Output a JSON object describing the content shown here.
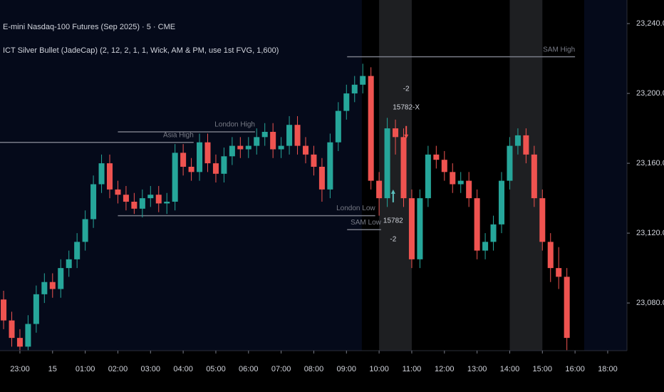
{
  "chart_data": {
    "type": "candlestick",
    "title": "E-mini Nasdaq-100 Futures (Sep 2025) · 5 · CME",
    "subtitle": "ICT Silver Bullet (JadeCap) (2, 12, 2, 1, 1, Wick, AM & PM, use 1st FVG, 1,600)",
    "up_color": "#26a69a",
    "down_color": "#ef5350",
    "x": [
      -0.5,
      -0.25,
      0,
      0.25,
      0.5,
      0.75,
      1,
      1.25,
      1.5,
      1.75,
      2,
      2.25,
      2.5,
      2.75,
      3,
      3.25,
      3.5,
      3.75,
      4,
      4.25,
      4.5,
      4.75,
      5,
      5.25,
      5.5,
      5.75,
      6,
      6.25,
      6.5,
      6.75,
      7,
      7.25,
      7.5,
      7.75,
      8,
      8.25,
      8.5,
      8.75,
      9,
      9.25,
      9.5,
      9.75,
      10,
      10.25,
      10.5,
      10.75,
      11,
      11.25,
      11.5,
      11.75,
      12,
      12.25,
      12.5,
      12.75,
      13,
      13.25,
      13.5,
      13.75,
      14,
      14.25,
      14.5,
      14.75,
      15,
      15.25,
      15.5,
      15.75,
      16,
      16.25,
      16.5,
      16.75
    ],
    "open": [
      23082,
      23070,
      23060,
      23055,
      23068,
      23085,
      23092,
      23088,
      23100,
      23105,
      23115,
      23128,
      23148,
      23160,
      23145,
      23142,
      23138,
      23134,
      23140,
      23142,
      23137,
      23138,
      23166,
      23158,
      23155,
      23172,
      23160,
      23154,
      23164,
      23170,
      23168,
      23170,
      23175,
      23178,
      23168,
      23170,
      23182,
      23170,
      23165,
      23158,
      23145,
      23172,
      23190,
      23200,
      23205,
      23210,
      23150,
      23140,
      23180,
      23175,
      23140,
      23105,
      23140,
      23165,
      23162,
      23155,
      23148,
      23150,
      23140,
      23110,
      23115,
      23125,
      23150,
      23170,
      23176,
      23165,
      23140,
      23115,
      23100,
      23095
    ],
    "high": [
      23087,
      23075,
      23065,
      23073,
      23090,
      23097,
      23097,
      23105,
      23110,
      23120,
      23133,
      23153,
      23165,
      23165,
      23150,
      23147,
      23143,
      23145,
      23147,
      23147,
      23143,
      23171,
      23171,
      23163,
      23177,
      23177,
      23165,
      23169,
      23175,
      23175,
      23175,
      23180,
      23183,
      23183,
      23175,
      23187,
      23187,
      23175,
      23170,
      23163,
      23177,
      23195,
      23205,
      23210,
      23217,
      23215,
      23155,
      23186,
      23185,
      23180,
      23145,
      23145,
      23170,
      23170,
      23167,
      23160,
      23155,
      23155,
      23145,
      23120,
      23130,
      23155,
      23175,
      23180,
      23180,
      23170,
      23145,
      23120,
      23112,
      23100
    ],
    "low": [
      23065,
      23055,
      23053,
      23053,
      23063,
      23080,
      23083,
      23083,
      23095,
      23100,
      23110,
      23123,
      23143,
      23140,
      23137,
      23133,
      23131,
      23129,
      23135,
      23132,
      23131,
      23133,
      23153,
      23150,
      23150,
      23155,
      23149,
      23149,
      23159,
      23163,
      23163,
      23165,
      23170,
      23163,
      23163,
      23165,
      23165,
      23160,
      23153,
      23138,
      23140,
      23167,
      23185,
      23195,
      23200,
      23145,
      23130,
      23135,
      23165,
      23135,
      23100,
      23100,
      23135,
      23157,
      23150,
      23143,
      23143,
      23135,
      23105,
      23105,
      23110,
      23120,
      23145,
      23165,
      23160,
      23135,
      23110,
      23092,
      23088,
      23053
    ],
    "close": [
      23070,
      23060,
      23055,
      23068,
      23085,
      23092,
      23088,
      23100,
      23105,
      23115,
      23128,
      23148,
      23160,
      23145,
      23142,
      23138,
      23134,
      23140,
      23142,
      23137,
      23138,
      23166,
      23158,
      23155,
      23172,
      23160,
      23154,
      23164,
      23170,
      23168,
      23170,
      23175,
      23178,
      23168,
      23170,
      23182,
      23170,
      23165,
      23158,
      23145,
      23172,
      23190,
      23200,
      23205,
      23210,
      23150,
      23140,
      23180,
      23175,
      23140,
      23105,
      23140,
      23165,
      23162,
      23155,
      23148,
      23150,
      23140,
      23110,
      23115,
      23125,
      23150,
      23170,
      23176,
      23165,
      23140,
      23115,
      23100,
      23095,
      23060
    ],
    "xlim": [
      -0.61,
      18.59
    ],
    "xticks": [
      {
        "value": 0,
        "label": "23:00"
      },
      {
        "value": 1,
        "label": "15"
      },
      {
        "value": 2,
        "label": "01:00"
      },
      {
        "value": 3,
        "label": "02:00"
      },
      {
        "value": 4,
        "label": "03:00"
      },
      {
        "value": 5,
        "label": "04:00"
      },
      {
        "value": 6,
        "label": "05:00"
      },
      {
        "value": 7,
        "label": "06:00"
      },
      {
        "value": 8,
        "label": "07:00"
      },
      {
        "value": 9,
        "label": "08:00"
      },
      {
        "value": 10,
        "label": "09:00"
      },
      {
        "value": 11,
        "label": "10:00"
      },
      {
        "value": 12,
        "label": "11:00"
      },
      {
        "value": 13,
        "label": "12:00"
      },
      {
        "value": 14,
        "label": "13:00"
      },
      {
        "value": 15,
        "label": "14:00"
      },
      {
        "value": 16,
        "label": "15:00"
      },
      {
        "value": 17,
        "label": "16:00"
      },
      {
        "value": 18,
        "label": "18:00"
      }
    ],
    "ylim": [
      23052.7,
      23253.5
    ],
    "yticks": [
      {
        "value": 23080,
        "label": "23,080.00"
      },
      {
        "value": 23120,
        "label": "23,120.00"
      },
      {
        "value": 23160,
        "label": "23,160.00"
      },
      {
        "value": 23200,
        "label": "23,200.00"
      },
      {
        "value": 23240,
        "label": "23,240.00"
      }
    ],
    "bands": [
      {
        "x": [
          10.47,
          17.28
        ],
        "color": "#000000"
      },
      {
        "x": [
          11.0,
          12.0
        ],
        "color": "#1e1f22"
      },
      {
        "x": [
          15.0,
          16.0
        ],
        "color": "#1e1f22"
      }
    ],
    "levels": [
      {
        "label": "SAM High",
        "value": 23221,
        "x": [
          10.02,
          17.0
        ]
      },
      {
        "label": "Asia High",
        "value": 23172,
        "x": [
          -0.61,
          5.32
        ]
      },
      {
        "label": "London High",
        "value": 23178,
        "x": [
          3.0,
          7.2
        ]
      },
      {
        "label": "London Low",
        "value": 23130,
        "x": [
          3.0,
          10.88
        ]
      },
      {
        "label": "SAM Low",
        "value": 23122,
        "x": [
          10.02,
          11.06
        ]
      }
    ],
    "signals": [
      {
        "x": 11.83,
        "y": 23174,
        "labels": [
          "-2",
          "15782-X"
        ],
        "color": "#ef5350"
      },
      {
        "x": 11.43,
        "y": 23145,
        "labels": [
          "15782",
          "-2"
        ],
        "color": "#5bc0be"
      }
    ]
  }
}
